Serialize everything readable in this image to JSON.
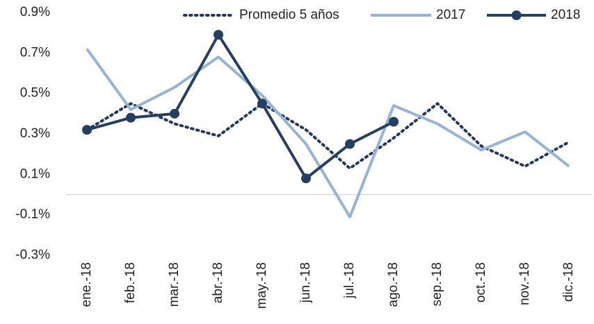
{
  "chart_data": {
    "type": "line",
    "categories": [
      "ene.-18",
      "feb.-18",
      "mar.-18",
      "abr.-18",
      "may.-18",
      "jun.-18",
      "jul.-18",
      "ago.-18",
      "sep.-18",
      "oct.-18",
      "nov.-18",
      "dic.-18"
    ],
    "series": [
      {
        "name": "Promedio 5 años",
        "color": "#1f3864",
        "dash": "dotted",
        "marker": false,
        "values": [
          0.32,
          0.45,
          0.35,
          0.29,
          0.45,
          0.32,
          0.13,
          0.28,
          0.45,
          0.24,
          0.14,
          0.26
        ]
      },
      {
        "name": "2017",
        "color": "#95b3d7",
        "dash": "solid",
        "marker": false,
        "values": [
          0.72,
          0.42,
          0.53,
          0.68,
          0.49,
          0.25,
          -0.11,
          0.44,
          0.35,
          0.22,
          0.31,
          0.14
        ]
      },
      {
        "name": "2018",
        "color": "#243f60",
        "dash": "solid",
        "marker": true,
        "values": [
          0.32,
          0.38,
          0.4,
          0.79,
          0.45,
          0.08,
          0.25,
          0.36,
          null,
          null,
          null,
          null
        ]
      }
    ],
    "ylim": [
      -0.3,
      0.9
    ],
    "yticks": [
      {
        "value": -0.3,
        "label": "-0.3%"
      },
      {
        "value": -0.1,
        "label": "-0.1%"
      },
      {
        "value": 0.1,
        "label": "0.1%"
      },
      {
        "value": 0.3,
        "label": "0.3%"
      },
      {
        "value": 0.5,
        "label": "0.5%"
      },
      {
        "value": 0.7,
        "label": "0.7%"
      },
      {
        "value": 0.9,
        "label": "0.9%"
      }
    ],
    "legend": "top-right"
  }
}
